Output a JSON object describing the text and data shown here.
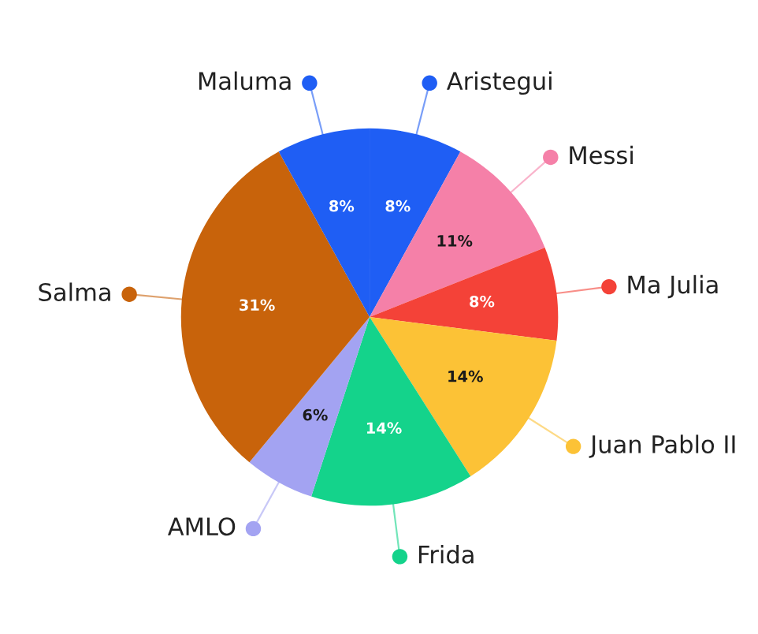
{
  "chart_data": {
    "type": "pie",
    "categories": [
      "Aristegui",
      "Messi",
      "Ma Julia",
      "Juan Pablo II",
      "Frida",
      "AMLO",
      "Salma",
      "Maluma"
    ],
    "values": [
      8,
      11,
      8,
      14,
      14,
      6,
      31,
      8
    ],
    "value_labels": [
      "8%",
      "11%",
      "8%",
      "14%",
      "14%",
      "6%",
      "31%",
      "8%"
    ],
    "colors": [
      "#1f5ef4",
      "#f580a8",
      "#f44238",
      "#fcc236",
      "#14d38b",
      "#a3a3f2",
      "#c8630b",
      "#1f5ef4"
    ],
    "legend": "right"
  }
}
